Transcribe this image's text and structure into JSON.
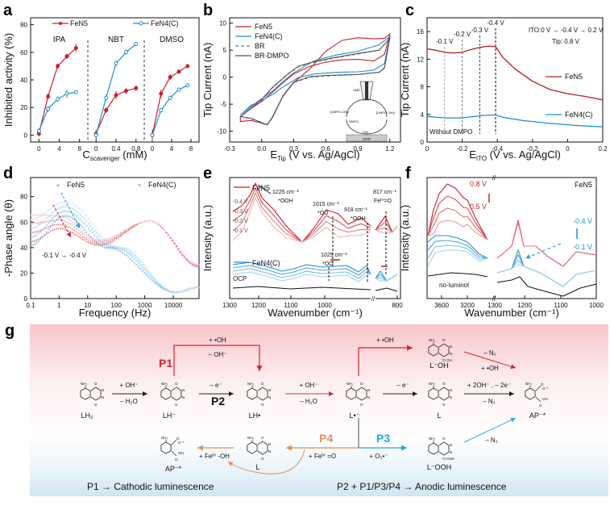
{
  "panel_labels": [
    "a",
    "b",
    "c",
    "d",
    "e",
    "f",
    "g"
  ],
  "colors": {
    "fen5": "#c8202a",
    "fen4c": "#1f8fd0",
    "black": "#111111",
    "gray": "#666666",
    "p1": "#d9222a",
    "p2": "#111111",
    "p3": "#2aa7e0",
    "p4": "#e0905a",
    "band_top": "#f9c9cc",
    "band_bottom": "#cfe6f2"
  },
  "chart_data": [
    {
      "id": "a",
      "type": "line",
      "ylabel": "Inhibited activity (%)",
      "xlabel_main": "C",
      "xlabel_sub": "scavenger",
      "xlabel_tail": " (mM)",
      "ylim": [
        -5,
        85
      ],
      "yticks": [
        0,
        20,
        40,
        60,
        80
      ],
      "legend": [
        "FeN5",
        "FeN4(C)"
      ],
      "groups": [
        {
          "name": "IPA",
          "xlim": [
            -1,
            9
          ],
          "xticks": [
            "0",
            "4",
            "8"
          ],
          "xtick_values": [
            0,
            4,
            8
          ],
          "x": [
            0,
            1.8,
            3.7,
            5.5,
            7.3
          ],
          "series": [
            {
              "name": "FeN5",
              "values": [
                1,
                28,
                50,
                57,
                63
              ],
              "err": [
                2,
                2,
                2,
                2,
                3
              ]
            },
            {
              "name": "FeN4(C)",
              "values": [
                3,
                19,
                26,
                30,
                31
              ],
              "err": [
                2,
                2,
                2,
                3,
                1.5
              ]
            }
          ]
        },
        {
          "name": "NBT",
          "xlim": [
            -0.1,
            0.9
          ],
          "xticks": [
            "0",
            "0.4",
            "0.8"
          ],
          "xtick_values": [
            0,
            0.4,
            0.8
          ],
          "x": [
            0,
            0.2,
            0.4,
            0.6,
            0.8
          ],
          "series": [
            {
              "name": "FeN5",
              "values": [
                1,
                18,
                29,
                32,
                34
              ],
              "err": [
                3,
                2,
                3,
                2,
                2
              ]
            },
            {
              "name": "FeN4(C)",
              "values": [
                0,
                27,
                52,
                60,
                66
              ],
              "err": [
                3,
                2,
                2,
                2,
                1.5
              ]
            }
          ]
        },
        {
          "name": "DMSO",
          "xlim": [
            -1,
            9
          ],
          "xticks": [
            "0",
            "4",
            "8"
          ],
          "xtick_values": [
            0,
            4,
            8
          ],
          "x": [
            0,
            1.8,
            3.7,
            5.5,
            7.3
          ],
          "series": [
            {
              "name": "FeN5",
              "values": [
                0,
                30,
                42,
                46,
                50
              ],
              "err": [
                4,
                3,
                2,
                1.5,
                1
              ]
            },
            {
              "name": "FeN4(C)",
              "values": [
                0,
                18,
                27,
                33,
                36
              ],
              "err": [
                1.5,
                1.5,
                1.5,
                1,
                1.5
              ]
            }
          ]
        }
      ]
    },
    {
      "id": "b",
      "type": "line",
      "ylabel": "Tip Current (nA)",
      "xlabel_main": "E",
      "xlabel_sub": "Tip",
      "xlabel_tail": " (V vs. Ag/AgCl)",
      "xlim": [
        -0.3,
        1.3
      ],
      "ylim": [
        -12,
        11
      ],
      "xticks": [
        -0.3,
        0.0,
        0.3,
        0.6,
        0.9,
        1.2
      ],
      "xtick_labels": [
        "-0.3",
        "0.0",
        "0.3",
        "0.6",
        "0.9",
        "1.2"
      ],
      "yticks": [
        -10,
        -5,
        0,
        5,
        10
      ],
      "legend": [
        "FeN5",
        "FeN4(C)",
        "BR",
        "BR-DMPO"
      ],
      "series": [
        {
          "name": "FeN5",
          "forward": [
            [
              -0.2,
              -8.2
            ],
            [
              -0.1,
              -8.0
            ],
            [
              0.0,
              -8.5
            ],
            [
              0.05,
              -8.8
            ],
            [
              0.1,
              -7.5
            ],
            [
              0.2,
              -3.5
            ],
            [
              0.3,
              -1.0
            ],
            [
              0.45,
              1.5
            ],
            [
              0.6,
              4.8
            ],
            [
              0.75,
              6.8
            ],
            [
              0.9,
              7.3
            ],
            [
              1.05,
              7.1
            ],
            [
              1.15,
              7.2
            ],
            [
              1.2,
              8.0
            ]
          ],
          "reverse": [
            [
              1.2,
              8.0
            ],
            [
              1.15,
              4.2
            ],
            [
              1.05,
              3.0
            ],
            [
              0.9,
              3.3
            ],
            [
              0.75,
              3.2
            ],
            [
              0.6,
              2.8
            ],
            [
              0.45,
              2.0
            ],
            [
              0.3,
              0.6
            ],
            [
              0.2,
              -1.0
            ],
            [
              0.1,
              -2.8
            ],
            [
              0.0,
              -4.5
            ],
            [
              -0.1,
              -5.8
            ],
            [
              -0.2,
              -7.3
            ],
            [
              -0.2,
              -8.2
            ]
          ]
        },
        {
          "name": "FeN4(C)",
          "forward": [
            [
              -0.2,
              -7.0
            ],
            [
              -0.1,
              -5.2
            ],
            [
              0.0,
              -4.3
            ],
            [
              0.1,
              -3.2
            ],
            [
              0.2,
              -1.8
            ],
            [
              0.35,
              0.0
            ],
            [
              0.5,
              0.6
            ],
            [
              0.7,
              0.9
            ],
            [
              0.9,
              1.0
            ],
            [
              1.05,
              1.3
            ],
            [
              1.15,
              2.5
            ],
            [
              1.2,
              7.5
            ]
          ],
          "reverse": [
            [
              1.2,
              7.5
            ],
            [
              1.1,
              6.0
            ],
            [
              0.9,
              4.8
            ],
            [
              0.7,
              4.1
            ],
            [
              0.5,
              3.1
            ],
            [
              0.4,
              2.0
            ],
            [
              0.3,
              0.8
            ],
            [
              0.2,
              -0.8
            ],
            [
              0.1,
              -2.6
            ],
            [
              0.0,
              -4.0
            ],
            [
              -0.1,
              -5.4
            ],
            [
              -0.2,
              -7.0
            ]
          ]
        },
        {
          "name": "BR",
          "forward": [
            [
              -0.2,
              -7.3
            ],
            [
              -0.1,
              -7.7
            ],
            [
              0.0,
              -8.5
            ],
            [
              0.05,
              -8.9
            ],
            [
              0.1,
              -7.5
            ],
            [
              0.2,
              -3.5
            ],
            [
              0.3,
              -1.0
            ],
            [
              0.45,
              0.0
            ],
            [
              0.6,
              0.2
            ],
            [
              0.9,
              0.5
            ],
            [
              1.1,
              0.9
            ],
            [
              1.15,
              1.8
            ],
            [
              1.2,
              7.2
            ]
          ],
          "reverse": [
            [
              1.2,
              7.2
            ],
            [
              1.1,
              5.0
            ],
            [
              0.9,
              4.3
            ],
            [
              0.7,
              3.6
            ],
            [
              0.5,
              2.8
            ],
            [
              0.35,
              2.0
            ],
            [
              0.25,
              0.6
            ],
            [
              0.1,
              -2.0
            ],
            [
              0.0,
              -4.2
            ],
            [
              -0.1,
              -5.8
            ],
            [
              -0.2,
              -7.3
            ]
          ]
        },
        {
          "name": "BR-DMPO",
          "forward": [
            [
              -0.2,
              -7.3
            ],
            [
              -0.1,
              -7.6
            ],
            [
              0.0,
              -8.4
            ],
            [
              0.05,
              -8.8
            ],
            [
              0.1,
              -7.4
            ],
            [
              0.2,
              -3.4
            ],
            [
              0.3,
              -0.9
            ],
            [
              0.45,
              0.1
            ],
            [
              0.6,
              0.3
            ],
            [
              0.9,
              0.5
            ],
            [
              1.1,
              0.9
            ],
            [
              1.15,
              1.7
            ],
            [
              1.2,
              7.2
            ]
          ],
          "reverse": [
            [
              1.2,
              7.2
            ],
            [
              1.1,
              5.0
            ],
            [
              0.9,
              4.4
            ],
            [
              0.7,
              3.7
            ],
            [
              0.5,
              2.9
            ],
            [
              0.35,
              2.1
            ],
            [
              0.25,
              0.7
            ],
            [
              0.1,
              -1.9
            ],
            [
              0.0,
              -4.1
            ],
            [
              -0.1,
              -5.7
            ],
            [
              -0.2,
              -7.3
            ]
          ]
        }
      ],
      "inset": {
        "ume": "UME",
        "left": "[DMPO-OH]•",
        "right": "[DMPO-OH]•",
        "dmpo": "DMPO",
        "oh": "•OH",
        "orr": "ORR"
      }
    },
    {
      "id": "c",
      "type": "line",
      "ylabel": "Tip Current (nA)",
      "xlabel_main": "E",
      "xlabel_sub": "ITO",
      "xlabel_tail": " (V vs. Ag/AgCl)",
      "ylim": [
        0,
        18
      ],
      "yticks": [
        0,
        4,
        8,
        12,
        16
      ],
      "xtick_labels": [
        "0",
        "-0.2",
        "-0.4",
        "-0.2",
        "0",
        "0.2"
      ],
      "xrange_index": [
        0,
        10
      ],
      "annotation_sweep": "ITO:0 V → -0.4 V → 0.2 V",
      "annotation_tip": "Tip: 0.8 V",
      "without_dmpo": "Without DMPO",
      "markers": [
        {
          "label": "-0.1 V",
          "x": 1.0,
          "style": "light"
        },
        {
          "label": "-0.2 V",
          "x": 2.0,
          "style": "mid"
        },
        {
          "label": "-0.3 V",
          "x": 3.0,
          "style": "dark"
        },
        {
          "label": "-0.4 V",
          "x": 3.9,
          "style": "black"
        }
      ],
      "series": [
        {
          "name": "FeN5",
          "x": [
            0,
            0.5,
            1,
            1.5,
            2,
            2.5,
            3,
            3.5,
            3.9,
            4.3,
            5,
            6,
            7,
            8,
            9,
            10
          ],
          "values": [
            13.5,
            13.3,
            13.0,
            12.9,
            13.0,
            13.4,
            13.7,
            13.9,
            13.8,
            12.3,
            10.6,
            8.8,
            7.6,
            7.0,
            6.6,
            6.1
          ]
        },
        {
          "name": "FeN4(C)",
          "x": [
            0,
            1,
            2,
            3,
            3.5,
            3.9,
            4.5,
            5.5,
            7,
            8.5,
            10
          ],
          "values": [
            3.7,
            3.5,
            3.5,
            3.8,
            3.9,
            3.9,
            3.5,
            3.1,
            2.7,
            2.4,
            2.2
          ]
        }
      ],
      "legend": [
        "FeN5",
        "FeN4(C)"
      ]
    },
    {
      "id": "d",
      "type": "scatter",
      "ylabel": "-Phase angle (θ)",
      "xlabel": "Frequency (Hz)",
      "xscale": "log",
      "xlim": [
        0.1,
        80000
      ],
      "ylim": [
        0,
        95
      ],
      "xticks": [
        0.1,
        1,
        10,
        100,
        1000,
        10000
      ],
      "xtick_labels": [
        "0.1",
        "1",
        "10",
        "100",
        "1000",
        "10000"
      ],
      "yticks": [
        0,
        20,
        40,
        60,
        80
      ],
      "legend": [
        "FeN5",
        "FeN4(C)"
      ],
      "annotation": "-0.1 V → -0.4 V",
      "series": [
        {
          "name": "FeN5",
          "shades": 4,
          "peak1": [
            1,
            55,
            65
          ],
          "valley": [
            25,
            42,
            46
          ],
          "peak2": [
            1500,
            61,
            61
          ],
          "start": [
            0.1,
            45,
            66
          ],
          "end": [
            80000,
            25,
            27
          ]
        },
        {
          "name": "FeN4(C)",
          "shades": 4,
          "peak": [
            1.6,
            65,
            76
          ],
          "start": [
            0.1,
            42,
            62
          ],
          "min": [
            12000,
            5,
            5
          ],
          "end": [
            80000,
            9,
            9
          ]
        }
      ]
    },
    {
      "id": "e",
      "type": "line",
      "ylabel": "Intensity (a.u.)",
      "xlabel": "Wavenumber (cm⁻¹)",
      "xticks": [
        "1300",
        "1200",
        "1100",
        "1000",
        "800"
      ],
      "legend": [
        "FeN5",
        "FeN4(C)"
      ],
      "potentials": [
        "-0.4 V",
        "-0.3 V",
        "-0.2 V",
        "-0.1 V"
      ],
      "ocp": "OCP",
      "annotations": [
        {
          "wavenumber": "1225 cm⁻¹",
          "species": "*OOH"
        },
        {
          "wavenumber": "1015 cm⁻¹",
          "species": "*OO"
        },
        {
          "wavenumber": "918 cm⁻¹",
          "species": "*OOH"
        },
        {
          "wavenumber": "817 cm⁻¹",
          "species": "Feᴵⱽ=O"
        },
        {
          "wavenumber": "1025 cm⁻¹",
          "species": "*OO"
        }
      ]
    },
    {
      "id": "f",
      "type": "line",
      "ylabel": "Intensity (a.u.)",
      "xlabel": "Wavenumber (cm⁻¹)",
      "xticks": [
        "3600",
        "3200",
        "1300",
        "1200",
        "1100",
        "1000"
      ],
      "title": "FeN5",
      "red_range": [
        "0.8 V",
        "0.5 V"
      ],
      "blue_range": [
        "-0.4 V",
        "-0.1 V"
      ],
      "no_luminol": "no-luminol"
    }
  ],
  "scheme": {
    "species": {
      "lh2": "LH₂",
      "lh_minus": "LH⁻",
      "lh_rad": "LH•",
      "l_rad": "L•⁻",
      "l": "L",
      "l_oh": "L⁻OH",
      "l_ooh": "L⁻OOH",
      "ap": "AP⁻*",
      "ap_bottom": "AP⁻*",
      "l_bottom": "L"
    },
    "reagents": {
      "oh_plus": "+ OH⁻",
      "h2o_minus": "– H₂O",
      "e_minus": "– e⁻",
      "p1_top": "+ •OH",
      "p1_bottom": "– OH⁻",
      "oh_plus2": "+ OH⁻",
      "h2o_minus2": "– H₂O",
      "rad_oh_top": "+ •OH",
      "e_minus2": "– e⁻",
      "n2_top": "– N₂",
      "oh_rad2": "+ •OH",
      "two_oh": "+ 2OH⁻ , – 2e⁻",
      "n2_mid": "– N₂",
      "n2_bottom": "– N₂",
      "o2": "+ O₂•⁻",
      "fe_o": "+ Feᴵⱽ =O",
      "fe_oh": "+ Feᴵⱽ -OH"
    },
    "pathways": {
      "p1": "P1",
      "p2": "P2",
      "p3": "P3",
      "p4": "P4"
    },
    "footer_left": "P1 → Cathodic luminescence",
    "footer_right": "P2 + P1/P3/P4 → Anodic luminescence"
  }
}
